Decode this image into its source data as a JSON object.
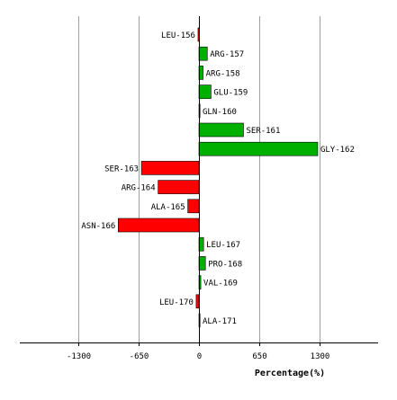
{
  "chart_data": {
    "type": "bar",
    "orientation": "horizontal",
    "categories": [
      "LEU-156",
      "ARG-157",
      "ARG-158",
      "GLU-159",
      "GLN-160",
      "SER-161",
      "GLY-162",
      "SER-163",
      "ARG-164",
      "ALA-165",
      "ASN-166",
      "LEU-167",
      "PRO-168",
      "VAL-169",
      "LEU-170",
      "ALA-171"
    ],
    "values": [
      -10,
      90,
      45,
      130,
      5,
      480,
      1280,
      -620,
      -440,
      -120,
      -870,
      50,
      70,
      20,
      -30,
      5
    ],
    "xlabel": "Percentage(%)",
    "ylabel": "",
    "title": "",
    "xlim": [
      -1950,
      1950
    ],
    "xticks": [
      -1300,
      -650,
      0,
      650,
      1300
    ],
    "xtick_labels": [
      "-1300",
      "-650",
      "0",
      "650",
      "1300"
    ],
    "grid": true,
    "colors": {
      "positive": "#00b000",
      "negative": "#ff0000",
      "grid": "#a0a0a0"
    }
  }
}
